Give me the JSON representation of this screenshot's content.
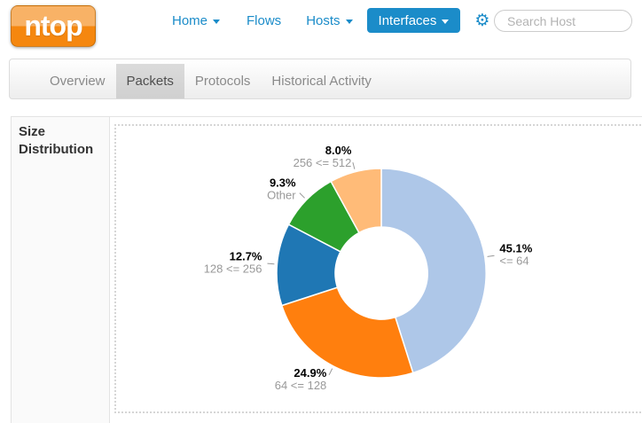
{
  "brand": {
    "logo_text": "ntop"
  },
  "navbar": {
    "items": [
      {
        "label": "Home",
        "has_caret": true
      },
      {
        "label": "Flows",
        "has_caret": false
      },
      {
        "label": "Hosts",
        "has_caret": true
      },
      {
        "label": "Interfaces",
        "has_caret": true,
        "style": "button"
      }
    ],
    "icons": {
      "gear": "⚙"
    },
    "search": {
      "placeholder": "Search Host",
      "value": ""
    }
  },
  "tabs": {
    "items": [
      {
        "label": "Overview",
        "active": false
      },
      {
        "label": "Packets",
        "active": true
      },
      {
        "label": "Protocols",
        "active": false
      },
      {
        "label": "Historical Activity",
        "active": false
      }
    ]
  },
  "panel": {
    "row_header": "Size Distribution"
  },
  "colors": {
    "accent_blue": "#1b8cc9",
    "logo_orange_top": "#f8b266",
    "logo_orange_bottom": "#f5870f",
    "active_tab_gray": "#d4d4d4"
  },
  "chart_data": {
    "type": "pie",
    "style": "donut",
    "title": "Size Distribution",
    "categories": [
      "<= 64",
      "64 <= 128",
      "128 <= 256",
      "Other",
      "256 <= 512"
    ],
    "values": [
      45.1,
      24.9,
      12.7,
      9.3,
      8.0
    ],
    "unit": "%",
    "colors": [
      "#aec7e8",
      "#ff7f0e",
      "#1f77b4",
      "#2ca02c",
      "#ffbb78"
    ],
    "start_angle_deg": 0,
    "direction": "clockwise",
    "inner_radius_ratio": 0.44,
    "legend": false,
    "label_style": "percent bold black above gray category, outside slices with leader ticks"
  }
}
